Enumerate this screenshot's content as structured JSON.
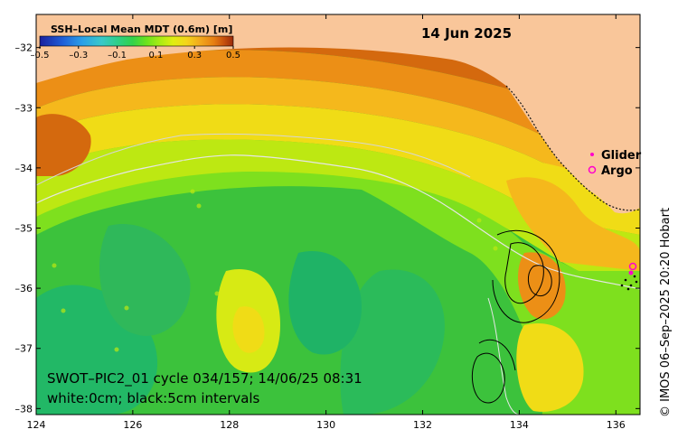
{
  "date_label": "14 Jun 2025",
  "colorbar": {
    "title": "SSH–Local Mean MDT (0.6m) [m]",
    "ticks": [
      "–0.5",
      "–0.3",
      "–0.1",
      "0.1",
      "0.3",
      "0.5"
    ],
    "colors": [
      "#1a1f9e",
      "#1f5fd8",
      "#2aa0e8",
      "#39c9c9",
      "#2ecf8a",
      "#33d24a",
      "#6ae21e",
      "#a8ec14",
      "#e0ee10",
      "#f4d41a",
      "#f2a81c",
      "#e67e12",
      "#c8520e",
      "#9a2a0a"
    ]
  },
  "axes": {
    "x_ticks": [
      "124",
      "126",
      "128",
      "130",
      "132",
      "134",
      "136"
    ],
    "y_ticks": [
      "–32",
      "–33",
      "–34",
      "–35",
      "–36",
      "–37",
      "–38"
    ]
  },
  "legend": {
    "glider_label": "Glider",
    "argo_label": "Argo",
    "glider_color": "#ff00cc",
    "argo_color": "#ff00cc"
  },
  "info": {
    "line1": "SWOT–PIC2_01 cycle 034/157; 14/06/25 08:31",
    "line2": "white:0cm; black:5cm intervals"
  },
  "credit": "© IMOS 06–Sep–2025 20:20 Hobart",
  "colors": {
    "land": "#f9c69a",
    "ocean_green": "#3cc23c",
    "orange_dark": "#d4690e",
    "orange": "#ec8f16",
    "yellow_orange": "#f5b81c",
    "yellow": "#f0dc16",
    "yellow_green": "#bde812",
    "light_green": "#7ee01e",
    "mid_green": "#44cc3a",
    "deep_green": "#1fb366"
  }
}
